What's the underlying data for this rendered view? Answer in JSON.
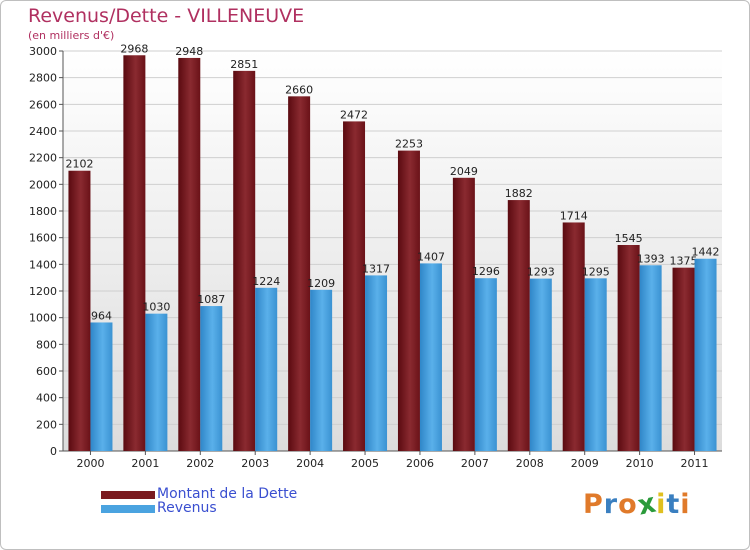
{
  "chart_data": {
    "type": "bar",
    "title": "Revenus/Dette - VILLENEUVE",
    "subtitle": "(en milliers d'€)",
    "categories": [
      "2000",
      "2001",
      "2002",
      "2003",
      "2004",
      "2005",
      "2006",
      "2007",
      "2008",
      "2009",
      "2010",
      "2011"
    ],
    "series": [
      {
        "name": "Montant de la Dette",
        "color": "#7a1a1f",
        "values": [
          2102,
          2968,
          2948,
          2851,
          2660,
          2472,
          2253,
          2049,
          1882,
          1714,
          1545,
          1375
        ]
      },
      {
        "name": "Revenus",
        "color": "#4aa3e0",
        "values": [
          964,
          1030,
          1087,
          1224,
          1209,
          1317,
          1407,
          1296,
          1293,
          1295,
          1393,
          1442
        ]
      }
    ],
    "ylim": [
      0,
      3000
    ],
    "yticks": [
      "0",
      "200",
      "400",
      "600",
      "800",
      "1000",
      "1200",
      "1400",
      "1600",
      "1800",
      "2000",
      "2200",
      "2400",
      "2600",
      "2800",
      "3000"
    ],
    "grid": true,
    "xlabel": "",
    "ylabel": ""
  },
  "logo": {
    "text": "Proxiti",
    "letters": [
      "P",
      "r",
      "o",
      "x",
      "i",
      "t",
      "i"
    ],
    "colors": [
      "#e07a2a",
      "#3a7fc0",
      "#e07a2a",
      "#2a9a3a",
      "#e0c020",
      "#3a7fc0",
      "#e07a2a"
    ]
  }
}
